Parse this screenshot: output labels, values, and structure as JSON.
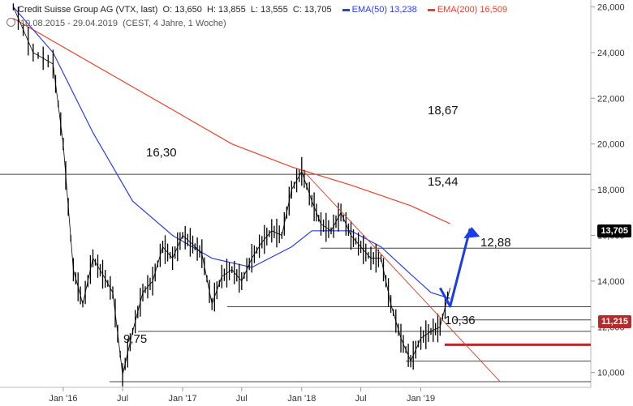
{
  "header": {
    "title": "Credit Suisse Group AG (VTX, last)",
    "ohlc": {
      "o_label": "O:",
      "o": "13,650",
      "h_label": "H:",
      "h": "13,855",
      "l_label": "L:",
      "l": "13,555",
      "c_label": "C:",
      "c": "13,705"
    },
    "ema50_label": "EMA(50)",
    "ema50_value": "13,238",
    "ema200_label": "EMA(200)",
    "ema200_value": "16,509",
    "range": "10.08.2015 - 29.04.2019",
    "period": "(CEST, 4 Jahre, 1 Woche)"
  },
  "colors": {
    "price": "#000000",
    "ema50": "#2a3de8",
    "ema200": "#e8432a",
    "support_line": "#444444",
    "trend_line": "#d94b3a",
    "arrow": "#1a3de8",
    "level_11215": "#b52a2a",
    "last_tag": "#000000"
  },
  "tags": {
    "last": "13,705",
    "level": "11,215"
  },
  "chart_data": {
    "type": "line",
    "title": "Credit Suisse Group AG (VTX, last)",
    "xlabel": "",
    "ylabel": "",
    "ylim": [
      9.35,
      26.3
    ],
    "y_ticks": [
      "10,000",
      "12,000",
      "14,000",
      "16,000",
      "18,000",
      "20,000",
      "22,000",
      "24,000",
      "26,000"
    ],
    "y_tick_values": [
      10,
      12,
      14,
      16,
      18,
      20,
      22,
      24,
      26
    ],
    "x_ticks": [
      "Jan '16",
      "Jul",
      "Jan '17",
      "Jul",
      "Jan '18",
      "Jul",
      "Jan '19"
    ],
    "x_tick_dates": [
      "2016-01",
      "2016-07",
      "2017-01",
      "2017-07",
      "2018-01",
      "2018-07",
      "2019-01"
    ],
    "x_range": [
      "2015-08-10",
      "2019-04-29"
    ],
    "series": [
      {
        "name": "Credit Suisse Group AG",
        "x": [
          "2015-08",
          "2015-10",
          "2015-12",
          "2016-01",
          "2016-02",
          "2016-03",
          "2016-04",
          "2016-05",
          "2016-06",
          "2016-07",
          "2016-08",
          "2016-09",
          "2016-10",
          "2016-11",
          "2016-12",
          "2017-01",
          "2017-02",
          "2017-03",
          "2017-04",
          "2017-05",
          "2017-06",
          "2017-07",
          "2017-08",
          "2017-09",
          "2017-10",
          "2017-11",
          "2017-12",
          "2018-01",
          "2018-02",
          "2018-03",
          "2018-04",
          "2018-05",
          "2018-06",
          "2018-07",
          "2018-08",
          "2018-09",
          "2018-10",
          "2018-11",
          "2018-12",
          "2019-01",
          "2019-02",
          "2019-03",
          "2019-04"
        ],
        "values": [
          26.0,
          24.0,
          23.5,
          20.0,
          14.5,
          13.0,
          15.0,
          14.3,
          13.5,
          9.9,
          11.8,
          13.5,
          14.0,
          15.5,
          15.0,
          16.0,
          15.6,
          15.2,
          13.0,
          14.2,
          14.5,
          14.0,
          15.0,
          15.7,
          16.2,
          16.0,
          18.0,
          18.8,
          17.5,
          16.5,
          16.2,
          17.0,
          16.0,
          15.5,
          15.0,
          15.0,
          13.0,
          11.5,
          10.5,
          11.5,
          11.8,
          12.0,
          13.705
        ]
      },
      {
        "name": "EMA(50)",
        "x": [
          "2015-08",
          "2015-12",
          "2016-04",
          "2016-08",
          "2016-12",
          "2017-04",
          "2017-08",
          "2017-12",
          "2018-02",
          "2018-06",
          "2018-09",
          "2018-12",
          "2019-02",
          "2019-04"
        ],
        "values": [
          26.0,
          24.0,
          20.5,
          17.5,
          16.0,
          15.0,
          14.6,
          15.5,
          16.2,
          16.2,
          15.5,
          14.3,
          13.5,
          13.24
        ]
      },
      {
        "name": "EMA(200)",
        "x": [
          "2015-08",
          "2016-06",
          "2016-12",
          "2017-06",
          "2017-12",
          "2018-06",
          "2018-12",
          "2019-04"
        ],
        "values": [
          25.5,
          23.0,
          21.5,
          20.0,
          19.0,
          18.2,
          17.3,
          16.51
        ]
      }
    ],
    "horizontal_levels": [
      {
        "label": "18,67",
        "value": 18.67
      },
      {
        "label": "15,44",
        "value": 15.44
      },
      {
        "label": "12,88",
        "value": 12.88
      },
      {
        "label": "11,215",
        "value": 11.215
      },
      {
        "label": "10,36",
        "value": 10.36
      },
      {
        "label": "9,75",
        "value": 9.75
      },
      {
        "label": "16,30",
        "value": 16.3
      }
    ],
    "extra_support_values": [
      13.1,
      12.3,
      11.8,
      10.5,
      9.6
    ],
    "trend_line": {
      "from": [
        "2018-01",
        18.9
      ],
      "to": [
        "2019-09",
        9.6
      ]
    },
    "projection_arrow": {
      "points": [
        [
          "2019-03",
          13.7
        ],
        [
          "2019-04",
          12.9
        ],
        [
          "2019-06",
          16.3
        ]
      ]
    }
  }
}
